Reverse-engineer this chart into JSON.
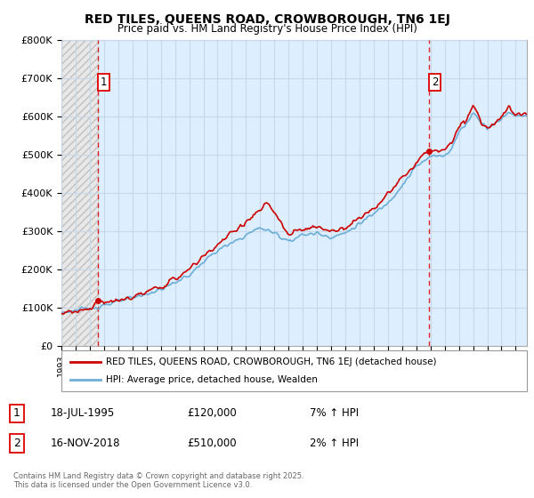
{
  "title": "RED TILES, QUEENS ROAD, CROWBOROUGH, TN6 1EJ",
  "subtitle": "Price paid vs. HM Land Registry's House Price Index (HPI)",
  "ylim": [
    0,
    800000
  ],
  "yticks": [
    0,
    100000,
    200000,
    300000,
    400000,
    500000,
    600000,
    700000,
    800000
  ],
  "ytick_labels": [
    "£0",
    "£100K",
    "£200K",
    "£300K",
    "£400K",
    "£500K",
    "£600K",
    "£700K",
    "£800K"
  ],
  "hpi_color": "#6baed6",
  "price_color": "#cc0000",
  "legend_entry1": "RED TILES, QUEENS ROAD, CROWBOROUGH, TN6 1EJ (detached house)",
  "legend_entry2": "HPI: Average price, detached house, Wealden",
  "footer": "Contains HM Land Registry data © Crown copyright and database right 2025.\nThis data is licensed under the Open Government Licence v3.0.",
  "plot_bg_color": "#ddeeff",
  "hatch_bg_color": "#d8d8d8",
  "grid_color": "#bbccdd",
  "dashed_line_color": "#dd0000",
  "marker1_x": 1995.55,
  "marker1_y": 120000,
  "marker2_x": 2018.88,
  "marker2_y": 510000,
  "xmin": 1993.0,
  "xmax": 2025.8,
  "hatch_xmax": 1995.55
}
